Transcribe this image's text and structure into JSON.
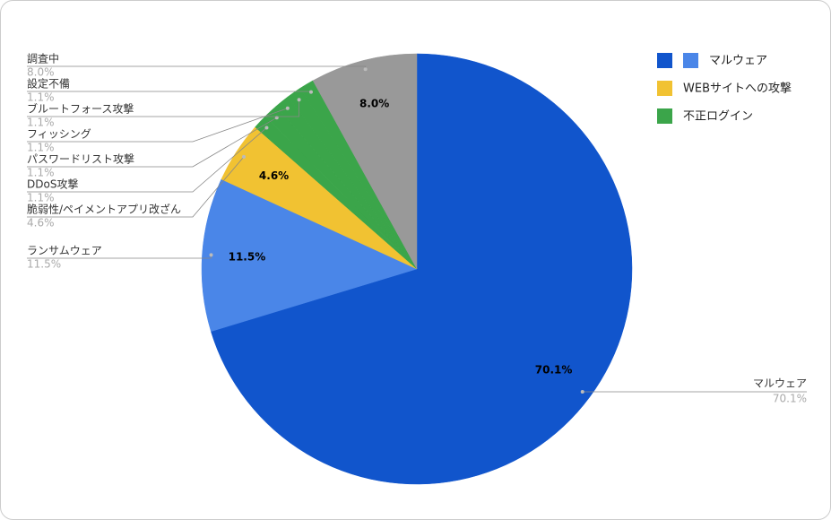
{
  "chart_data": {
    "type": "pie",
    "categories": [
      "マルウェア",
      "ランサムウェア",
      "脆弱性/ペイメントアプリ改ざん",
      "DDoS攻撃",
      "パスワードリスト攻撃",
      "フィッシング",
      "ブルートフォース攻撃",
      "設定不備",
      "調査中"
    ],
    "values": [
      70.1,
      11.5,
      4.6,
      1.1,
      1.1,
      1.1,
      1.1,
      1.1,
      8.0
    ],
    "value_labels": [
      "70.1%",
      "11.5%",
      "4.6%",
      "1.1%",
      "1.1%",
      "1.1%",
      "1.1%",
      "1.1%",
      "8.0%"
    ],
    "colors": [
      "#1155cc",
      "#4a86e8",
      "#f1c232",
      "#3ba54a",
      "#3ba54a",
      "#3ba54a",
      "#3ba54a",
      "#3ba54a",
      "#999999"
    ],
    "legend": [
      {
        "label": "マルウェア",
        "colors": [
          "#1155cc",
          "#4a86e8"
        ]
      },
      {
        "label": "WEBサイトへの攻撃",
        "colors": [
          "#f1c232"
        ]
      },
      {
        "label": "不正ログイン",
        "colors": [
          "#3ba54a"
        ]
      }
    ]
  }
}
